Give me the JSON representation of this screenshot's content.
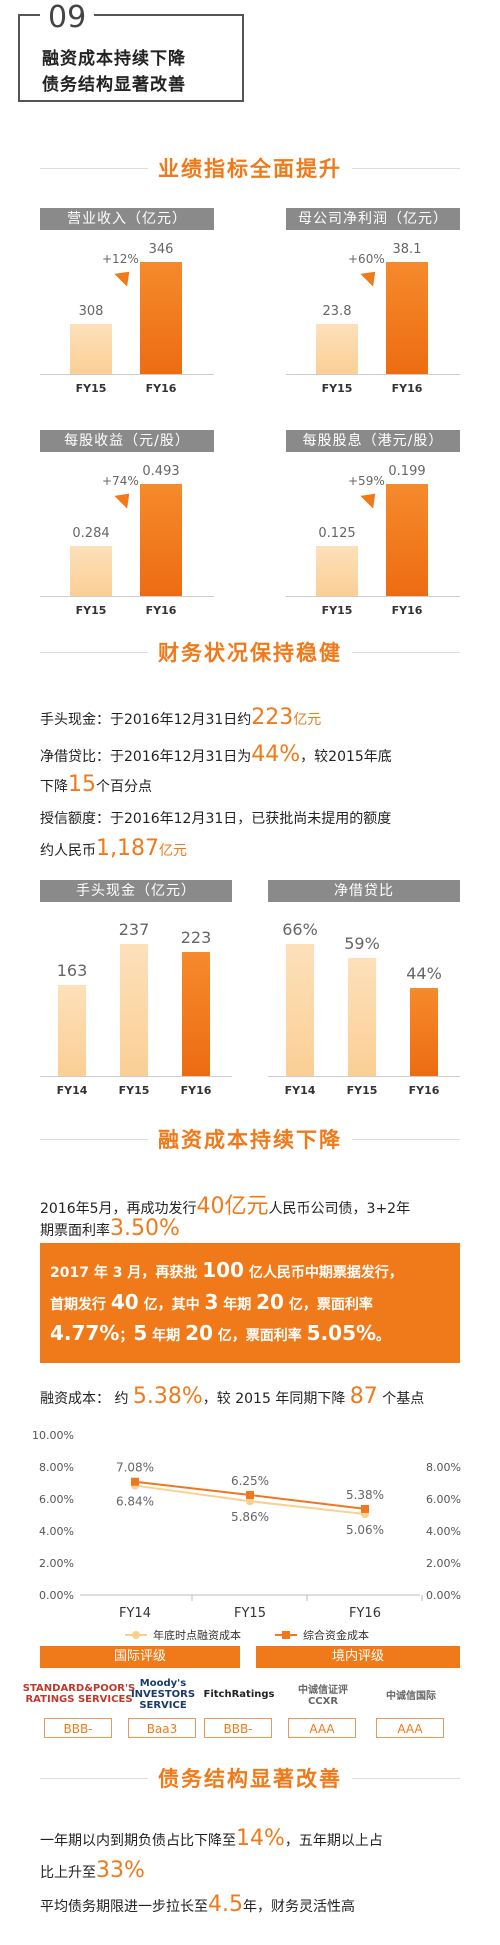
{
  "header": {
    "number": "09",
    "line1": "融资成本持续下降",
    "line2": "债务结构显著改善"
  },
  "sections": {
    "perf": "业绩指标全面提升",
    "finance": "财务状况保持稳健",
    "cost": "融资成本持续下降",
    "debt": "债务结构显著改善"
  },
  "perf_charts": [
    {
      "title": "营业收入（亿元）",
      "change": "+12%",
      "categories": [
        "FY15",
        "FY16"
      ],
      "values": [
        308,
        346
      ],
      "labels": [
        "308",
        "346"
      ]
    },
    {
      "title": "母公司净利润（亿元）",
      "change": "+60%",
      "categories": [
        "FY15",
        "FY16"
      ],
      "values": [
        23.8,
        38.1
      ],
      "labels": [
        "23.8",
        "38.1"
      ]
    },
    {
      "title": "每股收益（元/股）",
      "change": "+74%",
      "categories": [
        "FY15",
        "FY16"
      ],
      "values": [
        0.284,
        0.493
      ],
      "labels": [
        "0.284",
        "0.493"
      ]
    },
    {
      "title": "每股股息（港元/股）",
      "change": "+59%",
      "categories": [
        "FY15",
        "FY16"
      ],
      "values": [
        0.125,
        0.199
      ],
      "labels": [
        "0.125",
        "0.199"
      ]
    }
  ],
  "finance_text": {
    "cash_a": "手头现金：于2016年12月31日约",
    "cash_b": "223",
    "cash_c": "亿元",
    "net_a": "净借贷比：于2016年12月31日为",
    "net_b": "44%",
    "net_c": "，较2015年底",
    "net_d": "下降",
    "net_e": "15",
    "net_f": "个百分点",
    "credit_a": "授信额度：于2016年12月31日，已获批尚未提用的额度",
    "credit_b": "约人民币",
    "credit_c": "1,187",
    "credit_d": "亿元"
  },
  "finance_charts": [
    {
      "title": "手头现金（亿元）",
      "categories": [
        "FY14",
        "FY15",
        "FY16"
      ],
      "values": [
        163,
        237,
        223
      ],
      "labels": [
        "163",
        "237",
        "223"
      ]
    },
    {
      "title": "净借贷比",
      "categories": [
        "FY14",
        "FY15",
        "FY16"
      ],
      "values": [
        66,
        59,
        44
      ],
      "labels": [
        "66%",
        "59%",
        "44%"
      ]
    }
  ],
  "cost_text": {
    "l1a": "2016年5月，再成功发行",
    "l1b": "40亿元",
    "l1c": "人民币公司债，3+2年",
    "l2a": "期票面利率",
    "l2b": "3.50%",
    "box1a": "2017 年 3 月，再获批 ",
    "box1b": "100",
    "box1c": " 亿人民币中期票据发行，",
    "box2a": "首期发行 ",
    "box2b": "40",
    "box2c": " 亿，其中 ",
    "box2d": "3",
    "box2e": " 年期 ",
    "box2f": "20",
    "box2g": " 亿，票面利率",
    "box3a": "4.77%",
    "box3b": "；",
    "box3c": "5",
    "box3d": " 年期 ",
    "box3e": "20",
    "box3f": " 亿，票面利率 ",
    "box3g": "5.05%",
    "box3h": "。",
    "rate_a": "融资成本：  约 ",
    "rate_b": "5.38%",
    "rate_c": "，较 2015 年同期下降 ",
    "rate_d": "87",
    "rate_e": " 个基点"
  },
  "chart_data": {
    "type": "line",
    "x": [
      "FY14",
      "FY15",
      "FY16"
    ],
    "series": [
      {
        "name": "年底时点融资成本",
        "values": [
          6.84,
          5.86,
          5.06
        ],
        "labels": [
          "6.84%",
          "5.86%",
          "5.06%"
        ],
        "color": "#fbd08f"
      },
      {
        "name": "综合资金成本",
        "values": [
          7.08,
          6.25,
          5.38
        ],
        "labels": [
          "7.08%",
          "6.25%",
          "5.38%"
        ],
        "color": "#ee7720"
      }
    ],
    "ylim": [
      0,
      10
    ],
    "left_ticks": [
      "10.00%",
      "8.00%",
      "6.00%",
      "4.00%",
      "2.00%",
      "0.00%"
    ],
    "right_ticks": [
      "8.00%",
      "6.00%",
      "4.00%",
      "2.00%",
      "0.00%"
    ]
  },
  "ratings": {
    "intl_title": "国际评级",
    "dom_title": "境内评级",
    "agencies": [
      {
        "logo": "STANDARD&POOR'S RATINGS SERVICES",
        "value": "BBB-"
      },
      {
        "logo": "Moody's INVESTORS SERVICE",
        "value": "Baa3"
      },
      {
        "logo": "FitchRatings",
        "value": "BBB-"
      },
      {
        "logo": "中诚信证评 CCXR",
        "value": "AAA"
      },
      {
        "logo": "中诚信国际",
        "value": "AAA"
      }
    ]
  },
  "debt_text": {
    "l1a": "一年期以内到期负债占比下降至",
    "l1b": "14%",
    "l1c": "，五年期以上占",
    "l2a": "比上升至",
    "l2b": "33%",
    "l3a": "平均债务期限进一步拉长至",
    "l3b": "4.5",
    "l3c": "年，财务灵活性高"
  },
  "colors": {
    "accent": "#f07a1a",
    "light": "#fbcf95",
    "gray_chip": "#8a8a8a"
  }
}
